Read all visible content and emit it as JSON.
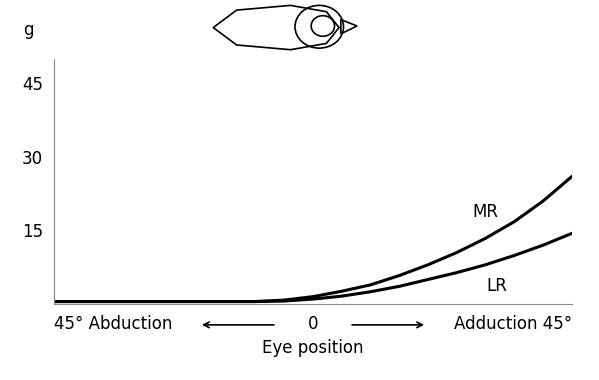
{
  "chart_data": {
    "type": "line",
    "x_label": "Eye position",
    "y_label": "g",
    "x": [
      -45,
      -30,
      -15,
      -10,
      -5,
      0,
      5,
      10,
      15,
      20,
      25,
      30,
      35,
      40,
      45
    ],
    "series": [
      {
        "name": "MR",
        "color": "#000000",
        "values": [
          0.5,
          0.5,
          0.5,
          0.5,
          0.8,
          1.5,
          2.6,
          3.9,
          5.8,
          8.0,
          10.5,
          13.4,
          16.8,
          21.0,
          26.0
        ]
      },
      {
        "name": "LR",
        "color": "#000000",
        "values": [
          0.5,
          0.5,
          0.5,
          0.5,
          0.6,
          1.0,
          1.6,
          2.5,
          3.6,
          5.0,
          6.4,
          8.0,
          9.9,
          12.0,
          14.4
        ]
      }
    ],
    "xlim": [
      -45,
      45
    ],
    "xticks": [
      {
        "value": -45,
        "label": "45° Abduction"
      },
      0,
      {
        "value": 45,
        "label": "Adduction 45°"
      }
    ],
    "ylim": [
      0,
      50
    ],
    "yticks": [
      15,
      30,
      45
    ],
    "grid": false
  }
}
